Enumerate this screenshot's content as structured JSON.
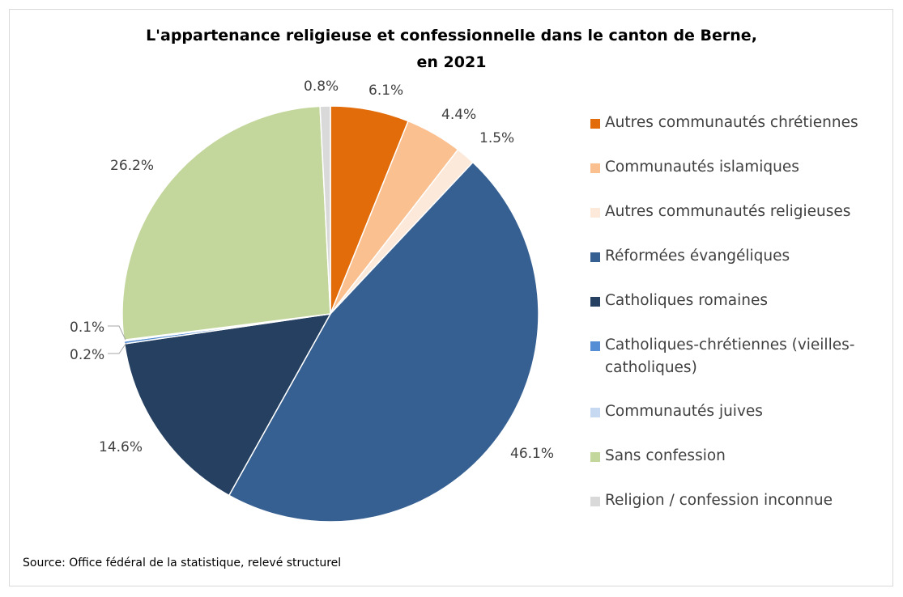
{
  "chart_data": {
    "type": "pie",
    "title_line1": "L'appartenance religieuse et confessionnelle dans le canton de Berne,",
    "title_line2": "en 2021",
    "slices": [
      {
        "name": "Autres communautés chrétiennes",
        "value": 6.1,
        "label": "6.1%",
        "color": "#e36c0a"
      },
      {
        "name": "Communautés islamiques",
        "value": 4.4,
        "label": "4.4%",
        "color": "#fac090"
      },
      {
        "name": "Autres communautés religieuses",
        "value": 1.5,
        "label": "1.5%",
        "color": "#fde9d9"
      },
      {
        "name": "Réformées évangéliques",
        "value": 46.1,
        "label": "46.1%",
        "color": "#376092"
      },
      {
        "name": "Catholiques romaines",
        "value": 14.6,
        "label": "14.6%",
        "color": "#254061"
      },
      {
        "name": "Catholiques-chrétiennes (vieilles-catholiques)",
        "value": 0.2,
        "label": "0.2%",
        "color": "#558ed5"
      },
      {
        "name": "Communautés juives",
        "value": 0.1,
        "label": "0.1%",
        "color": "#c6d9f1"
      },
      {
        "name": "Sans confession",
        "value": 26.2,
        "label": "26.2%",
        "color": "#c3d69b"
      },
      {
        "name": "Religion / confession inconnue",
        "value": 0.8,
        "label": "0.8%",
        "color": "#d9d9d9"
      }
    ],
    "legend_position": "right"
  },
  "source": "Source: Office fédéral de la statistique, relevé structurel"
}
